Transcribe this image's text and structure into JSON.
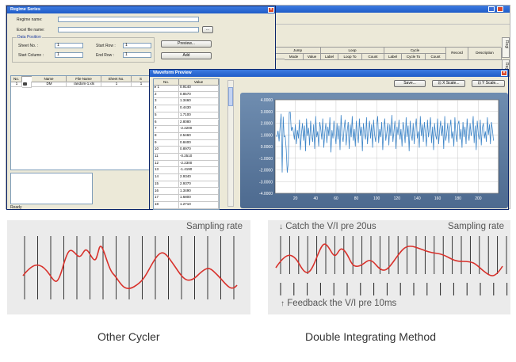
{
  "main_window": {
    "columns_top": [
      "Jump",
      "Loop",
      "Cycle"
    ],
    "columns": [
      "Mode",
      "Value",
      "Label",
      "Loop To",
      "Count",
      "Label",
      "Cycle To",
      "Count",
      "Record",
      "Description"
    ],
    "side_tabs": [
      "Regi",
      "Reg"
    ]
  },
  "regime_editor": {
    "title": "Regime Series",
    "regime_name_label": "Regime name:",
    "excel_file_label": "Excel file name:",
    "browse_label": "...",
    "data_position_label": "Data Position",
    "sheet_no_label": "Sheet No. :",
    "sheet_no_value": "1",
    "start_row_label": "Start Row :",
    "start_row_value": "1",
    "start_column_label": "Start Column :",
    "start_column_value": "1",
    "end_row_label": "End Row :",
    "end_row_value": "1",
    "preview_label": "Preview...",
    "add_label": "Add",
    "table_headers": [
      "No.",
      "",
      "Name",
      "File Name",
      "Sheet No.",
      "S"
    ],
    "table_rows": [
      [
        "1",
        "",
        "DM",
        "random-1.xls",
        "1",
        "1"
      ]
    ],
    "status": "Ready"
  },
  "waveform_editor": {
    "title": "Waveform Preview",
    "col_no": "No.",
    "col_value": "Value",
    "rows": [
      [
        "1",
        "0.9140"
      ],
      [
        "2",
        "0.8570"
      ],
      [
        "3",
        "1.3460"
      ],
      [
        "4",
        "0.4430"
      ],
      [
        "5",
        "1.7100"
      ],
      [
        "6",
        "2.8080"
      ],
      [
        "7",
        "-2.2200"
      ],
      [
        "8",
        "2.5460"
      ],
      [
        "9",
        "0.8400"
      ],
      [
        "10",
        "0.8970"
      ],
      [
        "11",
        "-0.2510"
      ],
      [
        "12",
        "-2.2300"
      ],
      [
        "13",
        "-1.4190"
      ],
      [
        "14",
        "2.9340"
      ],
      [
        "15",
        "2.9370"
      ],
      [
        "16",
        "1.3490"
      ],
      [
        "17",
        "1.6800"
      ],
      [
        "18",
        "1.2710"
      ]
    ],
    "save_label": "Save...",
    "x_scale_label": "X Scale...",
    "y_scale_label": "Y Scale..."
  },
  "chart_data": {
    "type": "line",
    "ylim": [
      -4,
      4
    ],
    "xlim": [
      0,
      220
    ],
    "y_ticks": [
      "4.0000",
      "3.0000",
      "2.0000",
      "1.0000",
      "0.0000",
      "-1.0000",
      "-2.0000",
      "-3.0000",
      "-4.0000"
    ],
    "x_ticks": [
      "20",
      "40",
      "60",
      "80",
      "100",
      "120",
      "140",
      "160",
      "180",
      "200"
    ],
    "x_tick_values": [
      20,
      40,
      60,
      80,
      100,
      120,
      140,
      160,
      180,
      200
    ],
    "line_color": "#3f86c8",
    "series": [
      {
        "values": [
          0.91,
          0.86,
          1.35,
          0.44,
          1.71,
          2.81,
          -2.22,
          2.55,
          0.84,
          0.9,
          -0.25,
          -2.23,
          -1.42,
          2.93,
          2.94,
          1.35,
          1.68,
          1.27,
          0.6,
          1.9,
          0.2,
          1.4,
          0.7,
          2.3,
          -0.3,
          1.1,
          2.0,
          0.5,
          1.8,
          -0.4,
          2.4,
          0.9,
          1.6,
          0.1,
          2.2,
          1.0,
          0.4,
          1.9,
          -0.2,
          2.6,
          0.8,
          1.3,
          0.0,
          2.1,
          1.5,
          0.6,
          2.4,
          -0.1,
          1.2,
          2.0,
          0.3,
          1.7,
          0.9,
          2.5,
          -0.5,
          1.4,
          0.7,
          2.2,
          1.1,
          0.2,
          2.0,
          0.6,
          1.8,
          -0.3,
          2.7,
          1.0,
          0.4,
          1.6,
          2.3,
          0.1,
          1.3,
          2.1,
          -0.2,
          1.9,
          0.8,
          2.6,
          0.5,
          1.5,
          0.0,
          2.2,
          1.2,
          0.3,
          2.4,
          0.9,
          1.7,
          -0.4,
          2.0,
          1.1,
          0.6,
          2.5,
          0.2,
          1.4,
          2.2,
          0.7,
          1.9,
          -0.1,
          2.3,
          1.0,
          0.4,
          1.8,
          2.6,
          0.3,
          1.5,
          0.8,
          2.1,
          -0.3,
          1.6,
          2.4,
          0.5,
          1.2,
          2.0,
          0.1,
          1.9,
          0.9,
          2.7,
          0.4,
          1.3,
          2.2,
          -0.2,
          1.7,
          1.0,
          2.3,
          0.6,
          1.5,
          0.0,
          2.1,
          1.4,
          0.3,
          2.5,
          0.8,
          1.8,
          -0.4,
          2.2,
          1.1,
          0.5,
          2.0,
          0.2,
          1.6,
          2.4,
          0.7,
          1.3,
          -0.1,
          2.6,
          0.9,
          1.9,
          0.4,
          2.1,
          1.2,
          0.0,
          2.3,
          0.8,
          1.5,
          2.5,
          0.3,
          1.7,
          -0.3,
          2.0,
          1.0,
          0.6,
          2.4,
          0.2,
          1.4,
          2.2,
          0.9,
          1.8,
          -0.2,
          2.6,
          0.5,
          1.1,
          2.0,
          0.3,
          1.6,
          2.3,
          0.7,
          1.3,
          0.0,
          2.5,
          1.0,
          0.4,
          1.9,
          2.2,
          0.6,
          1.5,
          -0.1,
          2.1,
          0.8,
          1.7,
          0.2,
          2.4,
          1.2,
          0.5,
          2.0,
          0.9,
          1.4,
          2.6,
          0.3,
          1.8,
          -0.3,
          2.2,
          1.1,
          0.6,
          2.3,
          0.1,
          1.6,
          2.0,
          0.7,
          1.3,
          0.4,
          2.5,
          1.0,
          1.9,
          0.2,
          2.1,
          1.4,
          0.5
        ]
      }
    ]
  },
  "diagram_left": {
    "label": "Sampling rate",
    "caption": "Other Cycler"
  },
  "diagram_right": {
    "label": "Sampling rate",
    "catch_label": "Catch the V/I pre 20us",
    "feedback_label": "Feedback the V/I pre 10ms",
    "caption": "Double Integrating Method"
  },
  "colors": {
    "signal": "#d8312b",
    "panel_bg": "#ebebeb",
    "window_title": "#2a63cc"
  }
}
